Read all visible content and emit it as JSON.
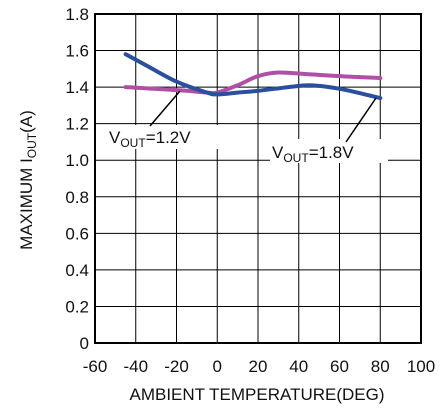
{
  "chart_data": {
    "type": "line",
    "xlabel": "AMBIENT TEMPERATURE(DEG)",
    "ylabel_main": "MAXIMUM I",
    "ylabel_sub": "OUT",
    "ylabel_unit": "(A)",
    "xlim": [
      -60,
      100
    ],
    "ylim": [
      0,
      1.8
    ],
    "x_ticks": [
      "-60",
      "-40",
      "-20",
      "0",
      "20",
      "40",
      "60",
      "80",
      "100"
    ],
    "y_ticks": [
      "0",
      "0.2",
      "0.4",
      "0.6",
      "0.8",
      "1.0",
      "1.2",
      "1.4",
      "1.6",
      "1.8"
    ],
    "grid": true,
    "series": [
      {
        "name": "VOUT=1.2V",
        "color": "#b04fa6",
        "x": [
          -45,
          -30,
          -15,
          -5,
          0,
          10,
          20,
          30,
          45,
          60,
          80
        ],
        "y": [
          1.4,
          1.39,
          1.38,
          1.37,
          1.37,
          1.41,
          1.46,
          1.48,
          1.47,
          1.46,
          1.45
        ]
      },
      {
        "name": "VOUT=1.8V",
        "color": "#2a4f9e",
        "x": [
          -45,
          -35,
          -20,
          -5,
          0,
          10,
          20,
          35,
          45,
          55,
          65,
          80
        ],
        "y": [
          1.58,
          1.52,
          1.43,
          1.37,
          1.36,
          1.37,
          1.38,
          1.4,
          1.41,
          1.4,
          1.38,
          1.34
        ]
      }
    ],
    "annotations": [
      {
        "main": "V",
        "sub": "OUT",
        "rest": "=1.2V"
      },
      {
        "main": "V",
        "sub": "OUT",
        "rest": "=1.8V"
      }
    ]
  }
}
